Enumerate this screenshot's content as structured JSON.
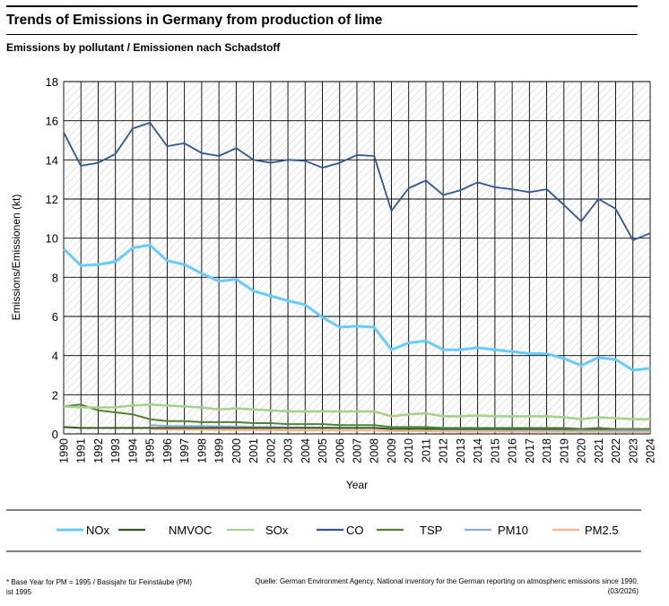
{
  "title": "Trends of Emissions in Germany from production of lime",
  "subtitle": "Emissions by pollutant / Emissionen nach Schadstoff",
  "footnote": "* Base Year for PM = 1995 / Basisjahr für Feinstäube (PM) ist 1995",
  "source": "Quelle: German Environment Agency, National inventory for the German reporting on atmospheric emissions since 1990, (03/2026)",
  "chart_data": {
    "type": "line",
    "xlabel": "Year",
    "ylabel": "Emissions/Emissionen (kt)",
    "ylim": [
      0,
      18
    ],
    "yticks": [
      0,
      2,
      4,
      6,
      8,
      10,
      12,
      14,
      16,
      18
    ],
    "grid": true,
    "legend_position": "bottom",
    "x": [
      1990,
      1991,
      1992,
      1993,
      1994,
      1995,
      1996,
      1997,
      1998,
      1999,
      2000,
      2001,
      2002,
      2003,
      2004,
      2005,
      2006,
      2007,
      2008,
      2009,
      2010,
      2011,
      2012,
      2013,
      2014,
      2015,
      2016,
      2017,
      2018,
      2019,
      2020,
      2021,
      2022,
      2023,
      2024
    ],
    "series": [
      {
        "name": "NOx",
        "color": "#66ccff",
        "values": [
          9.45,
          8.6,
          8.65,
          8.8,
          9.5,
          9.65,
          8.85,
          8.65,
          8.2,
          7.8,
          7.9,
          7.3,
          7.05,
          6.8,
          6.6,
          5.95,
          5.45,
          5.5,
          5.45,
          4.3,
          4.65,
          4.75,
          4.3,
          4.3,
          4.4,
          4.3,
          4.2,
          4.1,
          4.1,
          3.85,
          3.5,
          3.9,
          3.8,
          3.25,
          3.35
        ]
      },
      {
        "name": "NMVOC",
        "color": "#375623",
        "values": [
          0.35,
          0.3,
          0.3,
          0.3,
          0.3,
          0.3,
          0.3,
          0.3,
          0.3,
          0.3,
          0.3,
          0.3,
          0.3,
          0.3,
          0.3,
          0.3,
          0.3,
          0.3,
          0.3,
          0.25,
          0.25,
          0.25,
          0.25,
          0.25,
          0.25,
          0.25,
          0.25,
          0.25,
          0.25,
          0.25,
          0.25,
          0.25,
          0.25,
          0.25,
          0.25
        ]
      },
      {
        "name": "SOx",
        "color": "#a9d18e",
        "values": [
          1.4,
          1.35,
          1.35,
          1.35,
          1.45,
          1.5,
          1.45,
          1.4,
          1.35,
          1.25,
          1.3,
          1.25,
          1.2,
          1.15,
          1.15,
          1.15,
          1.15,
          1.15,
          1.15,
          0.9,
          1.0,
          1.05,
          0.9,
          0.9,
          0.95,
          0.9,
          0.9,
          0.9,
          0.9,
          0.85,
          0.75,
          0.85,
          0.8,
          0.75,
          0.75
        ]
      },
      {
        "name": "CO",
        "color": "#2f5597",
        "values": [
          15.4,
          13.7,
          13.85,
          14.3,
          15.6,
          15.9,
          14.7,
          14.85,
          14.35,
          14.2,
          14.6,
          14.0,
          13.85,
          14.0,
          13.95,
          13.6,
          13.85,
          14.25,
          14.2,
          11.4,
          12.55,
          12.95,
          12.2,
          12.45,
          12.85,
          12.6,
          12.5,
          12.35,
          12.5,
          11.7,
          10.85,
          12.0,
          11.5,
          9.9,
          10.25
        ]
      },
      {
        "name": "TSP",
        "color": "#548235",
        "values": [
          1.4,
          1.5,
          1.2,
          1.1,
          1.0,
          0.75,
          0.65,
          0.65,
          0.6,
          0.6,
          0.6,
          0.55,
          0.55,
          0.5,
          0.5,
          0.5,
          0.45,
          0.45,
          0.45,
          0.35,
          0.35,
          0.35,
          0.3,
          0.3,
          0.3,
          0.3,
          0.3,
          0.3,
          0.3,
          0.3,
          0.25,
          0.3,
          0.25,
          0.25,
          0.25
        ]
      },
      {
        "name": "PM10",
        "color": "#8eaadb",
        "values": [
          null,
          null,
          null,
          null,
          null,
          0.45,
          0.4,
          0.4,
          0.4,
          0.38,
          0.38,
          0.35,
          0.35,
          0.33,
          0.33,
          0.32,
          0.3,
          0.3,
          0.3,
          0.25,
          0.25,
          0.25,
          0.22,
          0.22,
          0.22,
          0.22,
          0.2,
          0.2,
          0.2,
          0.2,
          0.18,
          0.2,
          0.18,
          0.18,
          0.18
        ]
      },
      {
        "name": "PM2.5",
        "color": "#f4b183",
        "values": [
          null,
          null,
          null,
          null,
          null,
          0.25,
          0.22,
          0.22,
          0.22,
          0.2,
          0.2,
          0.2,
          0.2,
          0.18,
          0.18,
          0.18,
          0.17,
          0.17,
          0.17,
          0.14,
          0.14,
          0.14,
          0.12,
          0.12,
          0.12,
          0.12,
          0.11,
          0.11,
          0.11,
          0.11,
          0.1,
          0.11,
          0.1,
          0.1,
          0.1
        ]
      }
    ]
  }
}
